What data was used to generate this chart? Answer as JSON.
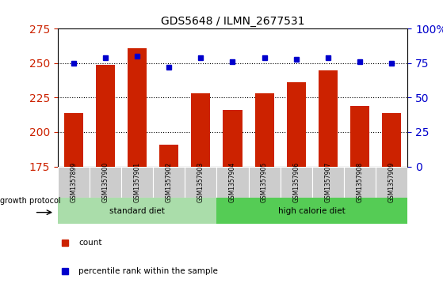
{
  "title": "GDS5648 / ILMN_2677531",
  "samples": [
    "GSM1357899",
    "GSM1357900",
    "GSM1357901",
    "GSM1357902",
    "GSM1357903",
    "GSM1357904",
    "GSM1357905",
    "GSM1357906",
    "GSM1357907",
    "GSM1357908",
    "GSM1357909"
  ],
  "counts": [
    214,
    249,
    261,
    191,
    228,
    216,
    228,
    236,
    245,
    219,
    214
  ],
  "percentiles": [
    75,
    79,
    80,
    72,
    79,
    76,
    79,
    78,
    79,
    76,
    75
  ],
  "ylim_left": [
    175,
    275
  ],
  "ylim_right": [
    0,
    100
  ],
  "yticks_left": [
    175,
    200,
    225,
    250,
    275
  ],
  "yticks_right": [
    0,
    25,
    50,
    75,
    100
  ],
  "yticklabels_right": [
    "0",
    "25",
    "50",
    "75",
    "100%"
  ],
  "grid_values": [
    200,
    225,
    250
  ],
  "bar_color": "#cc2200",
  "dot_color": "#0000cc",
  "standard_diet_indices": [
    0,
    1,
    2,
    3,
    4
  ],
  "high_calorie_indices": [
    5,
    6,
    7,
    8,
    9,
    10
  ],
  "standard_diet_label": "standard diet",
  "high_calorie_label": "high calorie diet",
  "growth_protocol_label": "growth protocol",
  "legend_count_label": "count",
  "legend_percentile_label": "percentile rank within the sample",
  "tick_label_color_left": "#cc2200",
  "tick_label_color_right": "#0000cc",
  "bar_width": 0.6,
  "green_standard": "#aaddaa",
  "green_high": "#55cc55",
  "gray_cell": "#cccccc"
}
